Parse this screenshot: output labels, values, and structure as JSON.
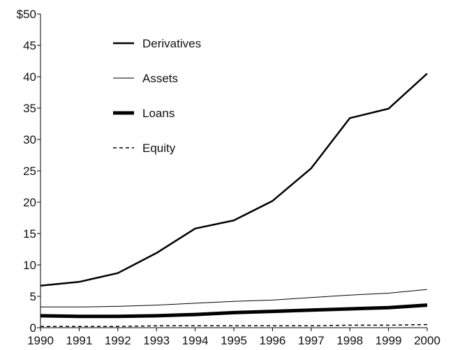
{
  "chart_data": {
    "type": "line",
    "title": "",
    "xlabel": "",
    "ylabel": "",
    "x": [
      "1990",
      "1991",
      "1992",
      "1993",
      "1994",
      "1995",
      "1996",
      "1997",
      "1998",
      "1999",
      "2000"
    ],
    "x_tick_labels": [
      "1990",
      "1991",
      "1992",
      "1993",
      "1994",
      "1995",
      "1996",
      "1997",
      "1998",
      "1999",
      "2000"
    ],
    "y_tick_labels": [
      "0",
      "5",
      "10",
      "15",
      "20",
      "25",
      "30",
      "35",
      "40",
      "45",
      "$50"
    ],
    "ylim": [
      0,
      50
    ],
    "grid": false,
    "legend_position": "top-left",
    "series": [
      {
        "name": "Derivatives",
        "style": "thick-solid",
        "values": [
          6.7,
          7.3,
          8.7,
          11.9,
          15.8,
          17.1,
          20.2,
          25.4,
          33.4,
          34.9,
          40.5
        ]
      },
      {
        "name": "Assets",
        "style": "thin-solid",
        "values": [
          3.3,
          3.3,
          3.4,
          3.6,
          3.9,
          4.2,
          4.4,
          4.8,
          5.2,
          5.5,
          6.1
        ]
      },
      {
        "name": "Loans",
        "style": "heavy-solid",
        "values": [
          1.9,
          1.8,
          1.8,
          1.9,
          2.1,
          2.4,
          2.6,
          2.8,
          3.0,
          3.2,
          3.6
        ]
      },
      {
        "name": "Equity",
        "style": "dashed",
        "values": [
          0.2,
          0.2,
          0.2,
          0.3,
          0.3,
          0.3,
          0.3,
          0.3,
          0.4,
          0.4,
          0.5
        ]
      }
    ]
  }
}
